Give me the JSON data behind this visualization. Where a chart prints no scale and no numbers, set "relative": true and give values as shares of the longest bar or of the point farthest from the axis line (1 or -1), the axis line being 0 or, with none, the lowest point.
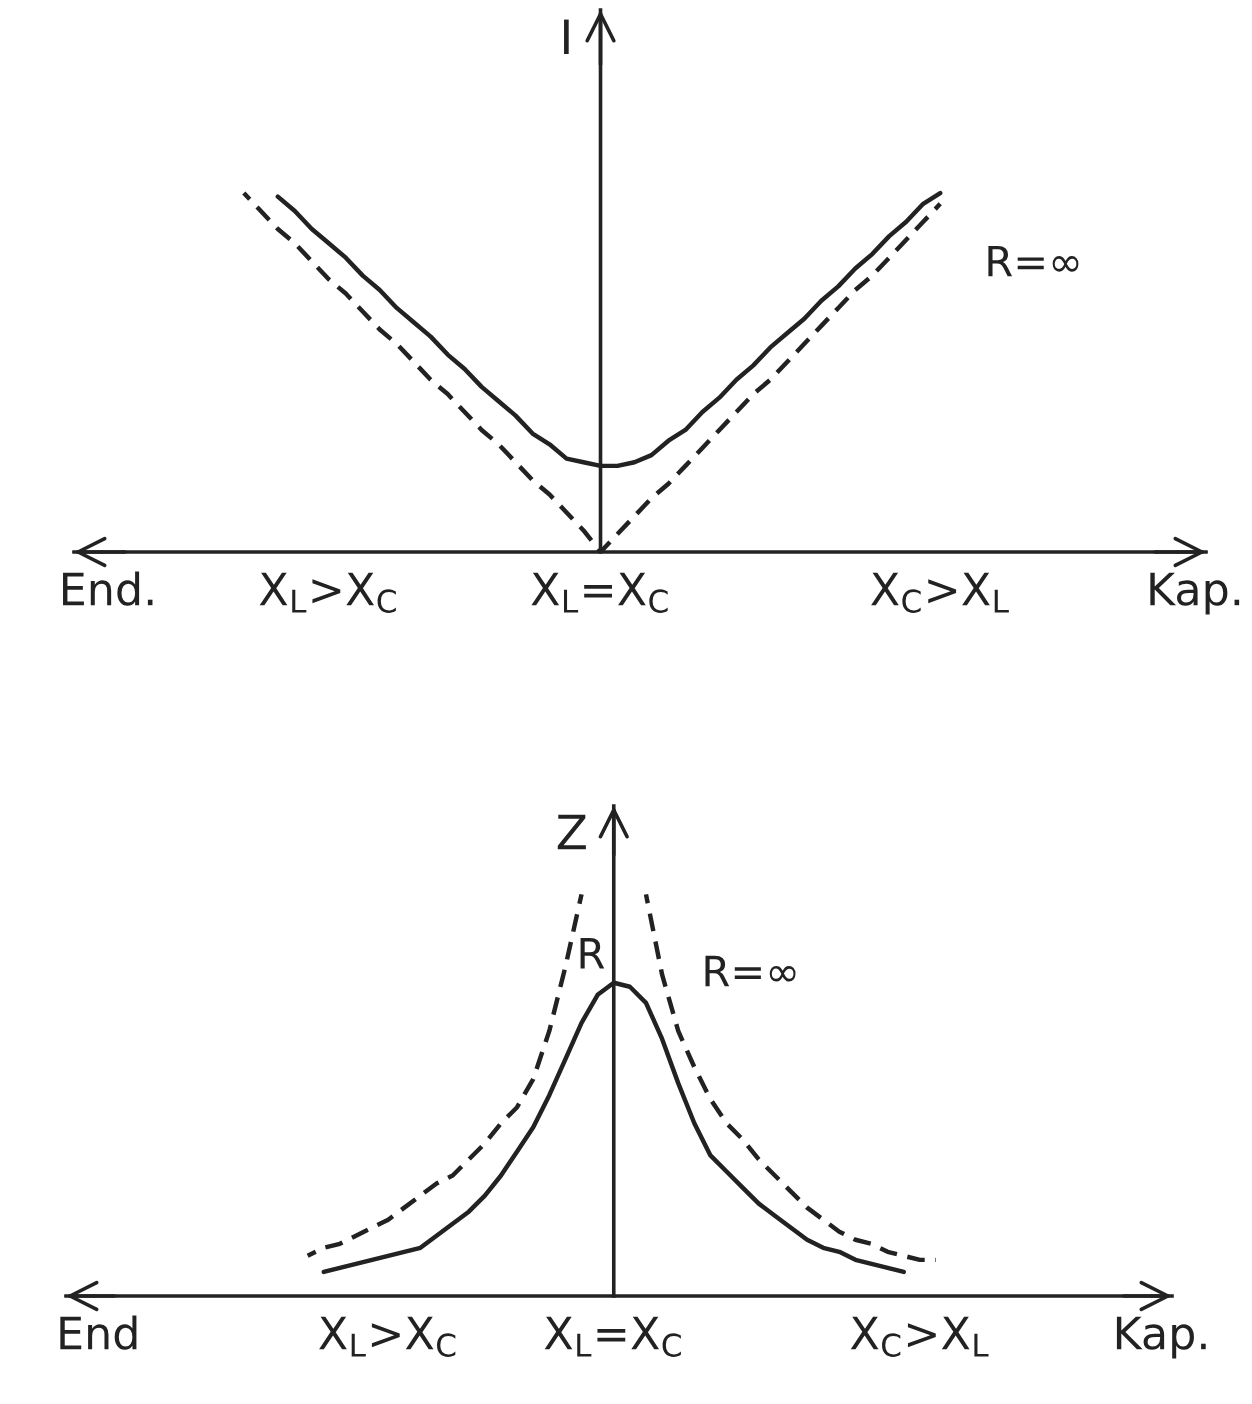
{
  "chart_data": [
    {
      "type": "line",
      "ylabel": "I",
      "relative": true,
      "categories": [
        "End.",
        null,
        null,
        null,
        null,
        null,
        null,
        null,
        null,
        null,
        null,
        null,
        null,
        "X$_{L}$>X$_{C}$",
        null,
        null,
        null,
        null,
        null,
        null,
        null,
        null,
        null,
        null,
        null,
        null,
        null,
        null,
        null,
        "X$_{L}$=X$_{C}$",
        null,
        null,
        null,
        null,
        null,
        null,
        null,
        null,
        null,
        null,
        null,
        null,
        null,
        null,
        null,
        null,
        null,
        null,
        null,
        "X$_{C}$>X$_{L}$",
        null,
        null,
        null,
        null,
        null,
        null,
        null,
        null,
        null,
        null,
        null,
        null,
        null,
        null,
        "Kap."
      ],
      "series": [
        {
          "color": "#222222",
          "line_style": "solid",
          "values": [
            null,
            null,
            null,
            null,
            null,
            null,
            null,
            null,
            null,
            null,
            0.99,
            0.95,
            0.9,
            0.86,
            0.82,
            0.77,
            0.73,
            0.68,
            0.64,
            0.6,
            0.55,
            0.51,
            0.46,
            0.42,
            0.38,
            0.33,
            0.3,
            0.26,
            0.25,
            0.24,
            0.24,
            0.25,
            0.27,
            0.31,
            0.34,
            0.39,
            0.43,
            0.48,
            0.52,
            0.57,
            0.61,
            0.65,
            0.7,
            0.74,
            0.79,
            0.83,
            0.88,
            0.92,
            0.97,
            1.0,
            null,
            null,
            null,
            null,
            null,
            null,
            null,
            null,
            null,
            null,
            null,
            null,
            null,
            null,
            null
          ]
        },
        {
          "name": "R=∞",
          "color": "#222222",
          "line_style": "dashed",
          "values": [
            null,
            null,
            null,
            null,
            null,
            null,
            null,
            null,
            1.0,
            0.95,
            0.9,
            0.86,
            0.81,
            0.76,
            0.72,
            0.67,
            0.62,
            0.58,
            0.53,
            0.48,
            0.44,
            0.39,
            0.34,
            0.3,
            0.25,
            0.2,
            0.16,
            0.11,
            0.06,
            0,
            0.05,
            0.1,
            0.15,
            0.19,
            0.24,
            0.29,
            0.34,
            0.39,
            0.44,
            0.48,
            0.53,
            0.58,
            0.63,
            0.68,
            0.73,
            0.77,
            0.82,
            0.87,
            0.92,
            0.97,
            null,
            null,
            null,
            null,
            null,
            null,
            null,
            null,
            null,
            null,
            null,
            null,
            null,
            null,
            null
          ]
        }
      ]
    },
    {
      "type": "line",
      "ylabel": "Z",
      "relative": true,
      "categories": [
        "End",
        null,
        null,
        null,
        null,
        null,
        null,
        null,
        null,
        null,
        null,
        null,
        null,
        null,
        null,
        null,
        null,
        null,
        "X$_{L}$>X$_{C}$",
        null,
        null,
        null,
        null,
        null,
        null,
        null,
        null,
        null,
        null,
        null,
        null,
        null,
        "X$_{L}$=X$_{C}$",
        null,
        null,
        null,
        null,
        null,
        null,
        null,
        null,
        null,
        null,
        null,
        null,
        null,
        null,
        null,
        null,
        null,
        null,
        "X$_{C}$>X$_{L}$",
        null,
        null,
        null,
        null,
        null,
        null,
        null,
        null,
        null,
        null,
        null,
        null,
        null,
        null,
        "Kap."
      ],
      "series": [
        {
          "color": "#222222",
          "line_style": "solid",
          "values": [
            null,
            null,
            null,
            null,
            null,
            null,
            null,
            null,
            null,
            null,
            null,
            null,
            null,
            null,
            0.06,
            0.07,
            0.08,
            0.09,
            0.1,
            0.11,
            0.12,
            0.15,
            0.18,
            0.21,
            0.25,
            0.3,
            0.36,
            0.42,
            0.5,
            0.59,
            0.68,
            0.75,
            0.78,
            0.77,
            0.73,
            0.64,
            0.53,
            0.43,
            0.35,
            0.31,
            0.27,
            0.23,
            0.2,
            0.17,
            0.14,
            0.12,
            0.11,
            0.09,
            0.08,
            0.07,
            0.06,
            null,
            null,
            null,
            null,
            null,
            null,
            null,
            null,
            null,
            null,
            null,
            null,
            null,
            null,
            null,
            null
          ]
        },
        {
          "name": "R=∞",
          "color": "#222222",
          "line_style": "dashed",
          "values": [
            null,
            null,
            null,
            null,
            null,
            null,
            null,
            null,
            null,
            null,
            null,
            null,
            null,
            0.1,
            0.12,
            0.13,
            0.15,
            0.17,
            0.19,
            0.22,
            0.25,
            0.28,
            0.3,
            0.34,
            0.38,
            0.43,
            0.47,
            0.54,
            0.66,
            0.82,
            1.0,
            null,
            null,
            null,
            1.0,
            0.8,
            0.66,
            0.57,
            0.49,
            0.43,
            0.39,
            0.34,
            0.3,
            0.26,
            0.22,
            0.19,
            0.16,
            0.14,
            0.13,
            0.11,
            0.1,
            0.09,
            0.09,
            null,
            null,
            null,
            null,
            null,
            null,
            null,
            null,
            null,
            null,
            null,
            null,
            null,
            null
          ]
        }
      ],
      "annotations": [
        {
          "text": "R",
          "x": "X$_{L}$=X$_{C}$",
          "y": 0.78
        }
      ]
    }
  ]
}
